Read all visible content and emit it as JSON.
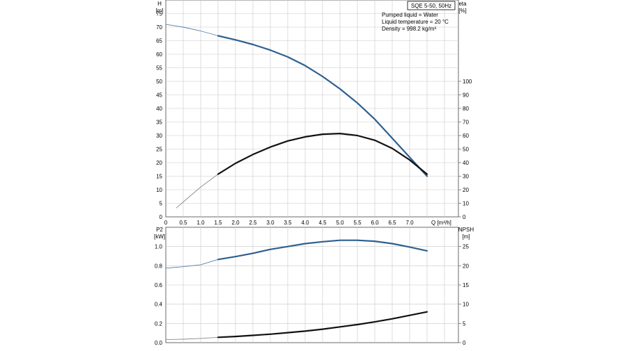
{
  "title": "SQE 5-50, 50Hz",
  "info_lines": [
    "Pumped liquid = Water",
    "Liquid temperature = 20 °C",
    "Density = 998.2 kg/m³"
  ],
  "colors": {
    "head": "#2e5f8f",
    "efficiency": "#111111",
    "grid": "#c8c8c8",
    "extrapolated": "#9a9a9a"
  },
  "chart_data": [
    {
      "type": "line",
      "x_label": "Q [m³/h]",
      "xlim": [
        0,
        8.4
      ],
      "x_ticks": [
        0,
        0.5,
        1.0,
        1.5,
        2.0,
        2.5,
        3.0,
        3.5,
        4.0,
        4.5,
        5.0,
        5.5,
        6.0,
        6.5,
        7.0
      ],
      "y_left": {
        "label": [
          "H",
          "[m]"
        ],
        "lim": [
          0,
          80
        ],
        "ticks": [
          0,
          5,
          10,
          15,
          20,
          25,
          30,
          35,
          40,
          45,
          50,
          55,
          60,
          65,
          70,
          75
        ]
      },
      "y_right": {
        "label": [
          "eta",
          "[%]"
        ],
        "lim": [
          0,
          160
        ],
        "ticks": [
          0,
          10,
          20,
          30,
          40,
          50,
          60,
          70,
          80,
          90,
          100
        ]
      },
      "grid": true,
      "series": [
        {
          "axis": "left",
          "color_key": "head",
          "points": [
            [
              0,
              71.0
            ],
            [
              0.5,
              70.0
            ],
            [
              1.0,
              68.6
            ],
            [
              1.5,
              66.8
            ],
            [
              2.0,
              65.3
            ],
            [
              2.5,
              63.6
            ],
            [
              3.0,
              61.5
            ],
            [
              3.5,
              59.0
            ],
            [
              4.0,
              55.8
            ],
            [
              4.5,
              51.8
            ],
            [
              5.0,
              47.2
            ],
            [
              5.5,
              42.0
            ],
            [
              6.0,
              36.0
            ],
            [
              6.5,
              29.0
            ],
            [
              7.0,
              22.0
            ],
            [
              7.5,
              15.0
            ]
          ],
          "solid_from": 1.5
        },
        {
          "axis": "right",
          "color_key": "efficiency",
          "points": [
            [
              0.3,
              6.5
            ],
            [
              0.5,
              11.0
            ],
            [
              1.0,
              22.0
            ],
            [
              1.5,
              31.5
            ],
            [
              2.0,
              39.5
            ],
            [
              2.5,
              46.0
            ],
            [
              3.0,
              51.5
            ],
            [
              3.5,
              56.0
            ],
            [
              4.0,
              59.0
            ],
            [
              4.5,
              61.0
            ],
            [
              5.0,
              61.5
            ],
            [
              5.5,
              60.0
            ],
            [
              6.0,
              56.5
            ],
            [
              6.5,
              50.5
            ],
            [
              7.0,
              42.0
            ],
            [
              7.5,
              31.5
            ]
          ],
          "solid_from": 1.5
        }
      ]
    },
    {
      "type": "line",
      "y_left": {
        "label": [
          "P2",
          "[kW]"
        ],
        "lim": [
          0,
          1.2
        ],
        "ticks": [
          0.0,
          0.2,
          0.4,
          0.6,
          0.8,
          1.0
        ]
      },
      "y_right": {
        "label": [
          "NPSH",
          "[m]"
        ],
        "lim": [
          0,
          30
        ],
        "ticks": [
          0,
          5,
          10,
          15,
          20,
          25
        ]
      },
      "grid": true,
      "series": [
        {
          "axis": "left",
          "color_key": "head",
          "points": [
            [
              0,
              0.775
            ],
            [
              0.5,
              0.79
            ],
            [
              1.0,
              0.81
            ],
            [
              1.5,
              0.865
            ],
            [
              2.0,
              0.895
            ],
            [
              2.5,
              0.93
            ],
            [
              3.0,
              0.97
            ],
            [
              3.5,
              1.0
            ],
            [
              4.0,
              1.03
            ],
            [
              4.5,
              1.05
            ],
            [
              5.0,
              1.065
            ],
            [
              5.5,
              1.065
            ],
            [
              6.0,
              1.055
            ],
            [
              6.5,
              1.03
            ],
            [
              7.0,
              0.995
            ],
            [
              7.5,
              0.955
            ]
          ],
          "solid_from": 1.5
        },
        {
          "axis": "right",
          "color_key": "efficiency",
          "points": [
            [
              0,
              0.8
            ],
            [
              0.5,
              0.9
            ],
            [
              1.0,
              1.1
            ],
            [
              1.5,
              1.4
            ],
            [
              2.0,
              1.6
            ],
            [
              2.5,
              1.9
            ],
            [
              3.0,
              2.2
            ],
            [
              3.5,
              2.6
            ],
            [
              4.0,
              3.0
            ],
            [
              4.5,
              3.5
            ],
            [
              5.0,
              4.1
            ],
            [
              5.5,
              4.7
            ],
            [
              6.0,
              5.4
            ],
            [
              6.5,
              6.2
            ],
            [
              7.0,
              7.1
            ],
            [
              7.5,
              8.0
            ]
          ],
          "solid_from": 1.5
        }
      ]
    }
  ]
}
